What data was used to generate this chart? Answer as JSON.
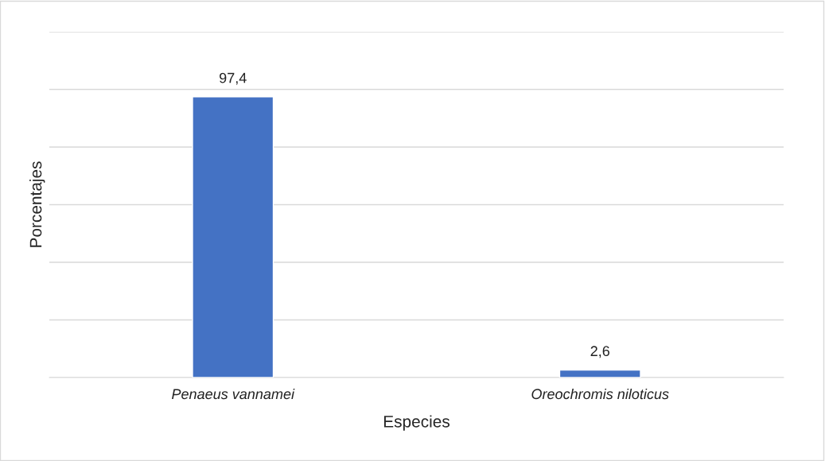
{
  "chart_data": {
    "type": "bar",
    "xlabel": "Especies",
    "ylabel": "Porcentajes",
    "categories": [
      "Penaeus vannamei",
      "Oreochromis niloticus"
    ],
    "values": [
      97.4,
      2.6
    ],
    "value_labels": [
      "97,4",
      "2,6"
    ],
    "color": "#4472c4",
    "ylim": [
      0,
      120
    ],
    "yticks": [
      {
        "value": 0,
        "label": null
      },
      {
        "value": 20,
        "label": null
      },
      {
        "value": 40,
        "label": null
      },
      {
        "value": 60,
        "label": null
      },
      {
        "value": 80,
        "label": null
      },
      {
        "value": 100,
        "label": null
      },
      {
        "value": 120,
        "label": null
      }
    ],
    "grid": "y",
    "tick_labels": "x"
  }
}
